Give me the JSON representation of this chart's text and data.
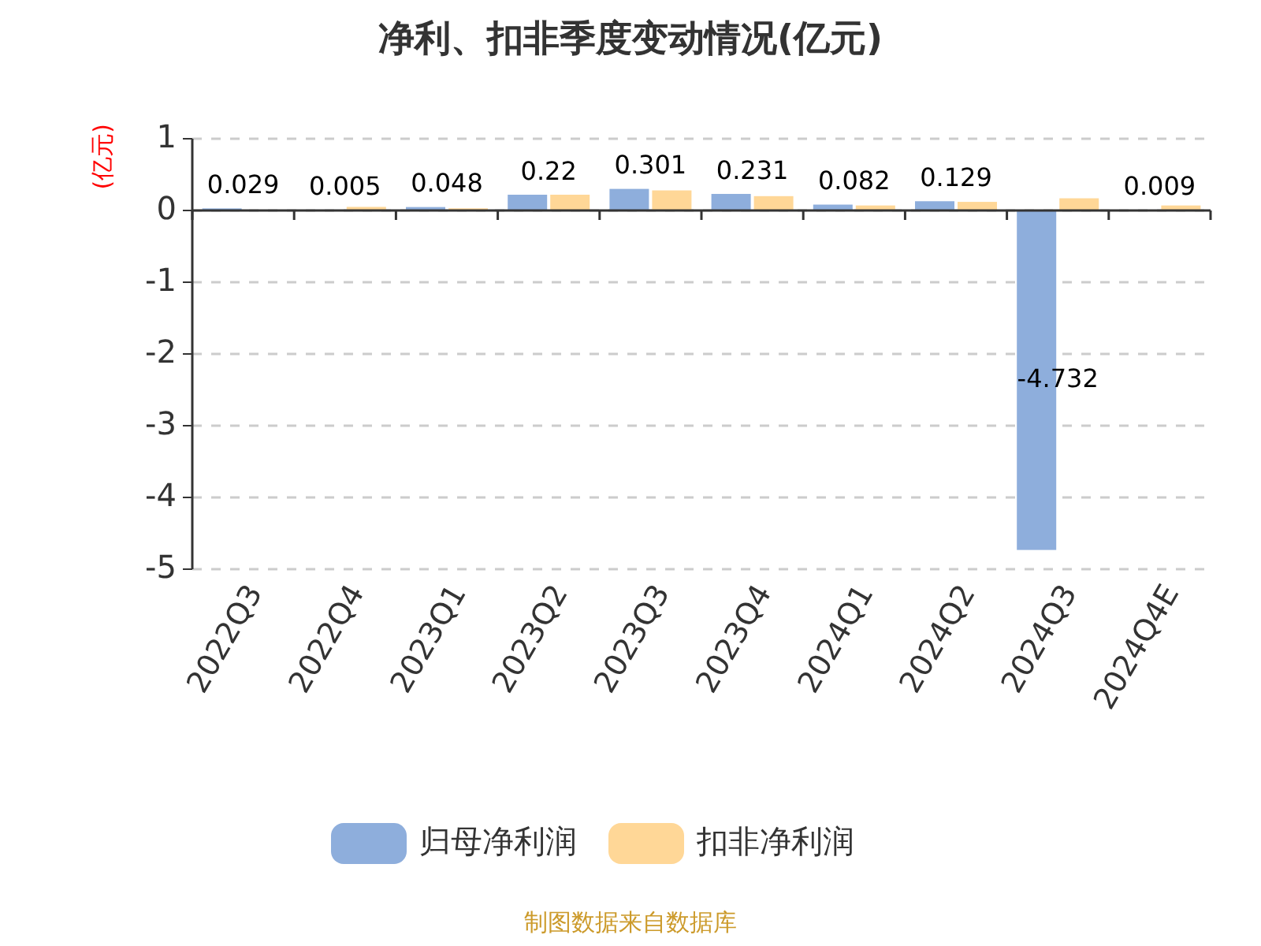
{
  "chart_data": {
    "type": "bar",
    "title": "净利、扣非季度变动情况(亿元)",
    "ylabel": "(亿元)",
    "categories": [
      "2022Q3",
      "2022Q4",
      "2023Q1",
      "2023Q2",
      "2023Q3",
      "2023Q4",
      "2024Q1",
      "2024Q2",
      "2024Q3",
      "2024Q4E"
    ],
    "series": [
      {
        "name": "归母净利润",
        "color": "#8eaedc",
        "values": [
          0.029,
          0.005,
          0.048,
          0.22,
          0.301,
          0.231,
          0.082,
          0.129,
          -4.732,
          0.009
        ],
        "value_labels": [
          "0.029",
          "0.005",
          "0.048",
          "0.22",
          "0.301",
          "0.231",
          "0.082",
          "0.129",
          "-4.732",
          "0.009"
        ]
      },
      {
        "name": "扣非净利润",
        "color": "#ffd797",
        "values": [
          null,
          0.05,
          0.03,
          0.22,
          0.28,
          0.2,
          0.07,
          0.12,
          0.17,
          0.07
        ]
      }
    ],
    "ylim": [
      -5,
      1
    ],
    "yticks": [
      -5,
      -4,
      -3,
      -2,
      -1,
      0,
      1
    ],
    "grid": "y",
    "legend": "bottom",
    "annotations": [
      "制图数据来自数据库"
    ]
  }
}
